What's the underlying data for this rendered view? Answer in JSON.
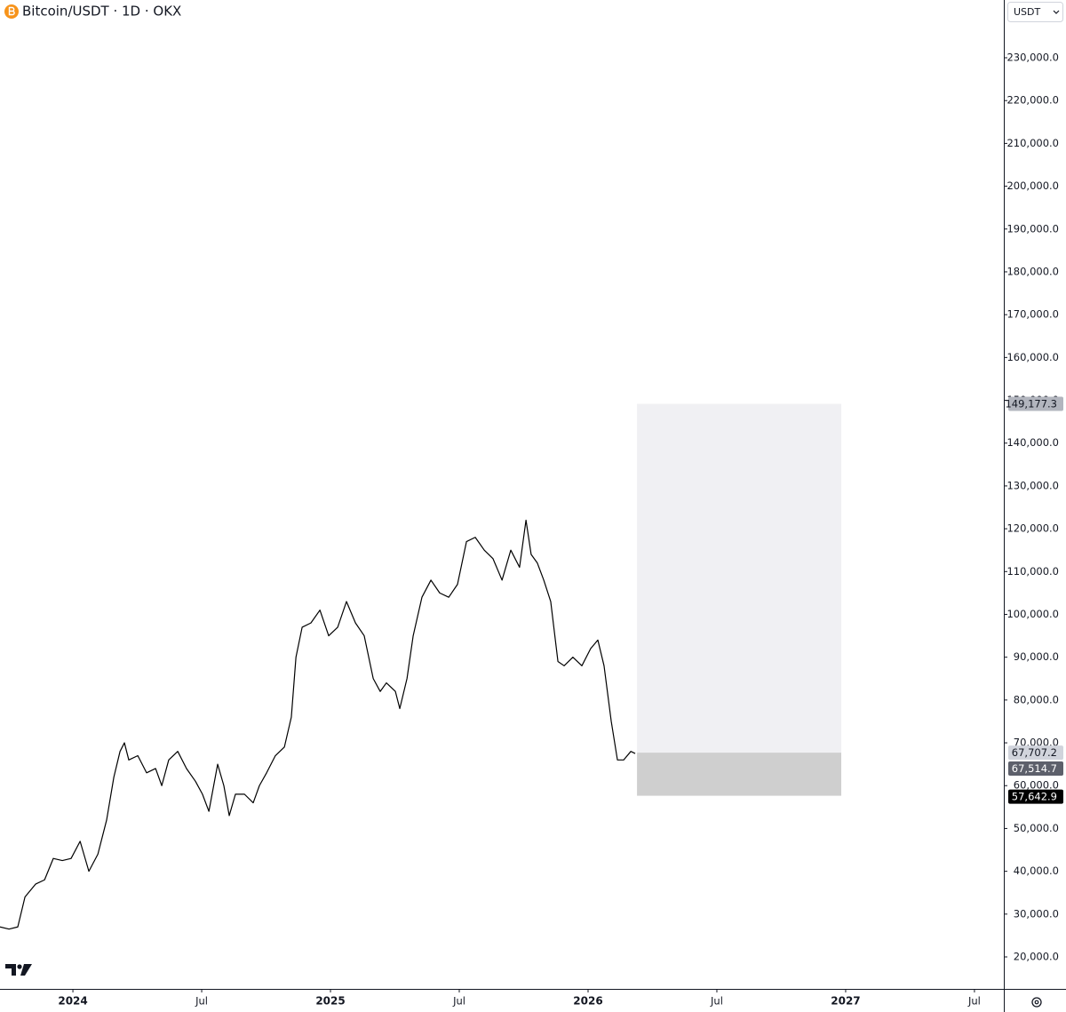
{
  "chart_data": {
    "type": "line",
    "title": "Bitcoin/USDT · 1D · OKX",
    "currency": "USDT",
    "color": "#000000",
    "x": [
      2023.717,
      2023.752,
      2023.786,
      2023.814,
      2023.855,
      2023.89,
      2023.924,
      2023.959,
      2023.993,
      2024.028,
      2024.062,
      2024.097,
      2024.131,
      2024.159,
      2024.183,
      2024.2,
      2024.217,
      2024.252,
      2024.286,
      2024.321,
      2024.345,
      2024.372,
      2024.407,
      2024.441,
      2024.476,
      2024.503,
      2024.528,
      2024.562,
      2024.586,
      2024.607,
      2024.631,
      2024.666,
      2024.7,
      2024.724,
      2024.752,
      2024.786,
      2024.821,
      2024.848,
      2024.866,
      2024.89,
      2024.924,
      2024.959,
      2024.993,
      2025.028,
      2025.062,
      2025.097,
      2025.131,
      2025.166,
      2025.193,
      2025.217,
      2025.252,
      2025.269,
      2025.297,
      2025.321,
      2025.355,
      2025.39,
      2025.424,
      2025.459,
      2025.493,
      2025.528,
      2025.562,
      2025.597,
      2025.631,
      2025.666,
      2025.7,
      2025.734,
      2025.759,
      2025.779,
      2025.803,
      2025.828,
      2025.855,
      2025.883,
      2025.907,
      2025.941,
      2025.976,
      2026.01,
      2026.038,
      2026.062,
      2026.09,
      2026.114,
      2026.138,
      2026.166,
      2026.183
    ],
    "values": [
      27000,
      26500,
      27000,
      34000,
      37000,
      38000,
      43000,
      42500,
      43000,
      47000,
      40000,
      44000,
      52000,
      62000,
      68000,
      70000,
      66000,
      67000,
      63000,
      64000,
      60000,
      66000,
      68000,
      64000,
      61000,
      58000,
      54000,
      65000,
      60000,
      53000,
      58000,
      58000,
      56000,
      60000,
      63000,
      67000,
      69000,
      76000,
      90000,
      97000,
      98000,
      101000,
      95000,
      97000,
      103000,
      98000,
      95000,
      85000,
      82000,
      84000,
      82000,
      78000,
      85000,
      95000,
      104000,
      108000,
      105000,
      104000,
      107000,
      117000,
      118000,
      115000,
      113000,
      108000,
      115000,
      111000,
      122000,
      114000,
      112000,
      108000,
      103000,
      89000,
      88000,
      90000,
      88000,
      92000,
      94000,
      88000,
      75000,
      66000,
      66000,
      68000,
      67514.7
    ],
    "xlim": [
      2023.717,
      2027.614
    ],
    "ylim": [
      12530,
      243490
    ],
    "xticks": [
      2024,
      {
        "value": 2024.5,
        "label": "Jul"
      },
      2025,
      {
        "value": 2025.5,
        "label": "Jul"
      },
      2026,
      {
        "value": 2026.5,
        "label": "Jul"
      },
      2027,
      {
        "value": 2027.5,
        "label": "Jul"
      }
    ],
    "yticks": [
      {
        "value": 20000,
        "label": "20,000.0"
      },
      {
        "value": 30000,
        "label": "30,000.0"
      },
      {
        "value": 40000,
        "label": "40,000.0"
      },
      {
        "value": 50000,
        "label": "50,000.0"
      },
      {
        "value": 60000,
        "label": "60,000.0"
      },
      {
        "value": 70000,
        "label": "70,000.0"
      },
      {
        "value": 80000,
        "label": "80,000.0"
      },
      {
        "value": 90000,
        "label": "90,000.0"
      },
      {
        "value": 100000,
        "label": "100,000.0"
      },
      {
        "value": 110000,
        "label": "110,000.0"
      },
      {
        "value": 120000,
        "label": "120,000.0"
      },
      {
        "value": 130000,
        "label": "130,000.0"
      },
      {
        "value": 140000,
        "label": "140,000.0"
      },
      {
        "value": 150000,
        "label": "150,000.0"
      },
      {
        "value": 160000,
        "label": "160,000.0"
      },
      {
        "value": 170000,
        "label": "170,000.0"
      },
      {
        "value": 180000,
        "label": "180,000.0"
      },
      {
        "value": 190000,
        "label": "190,000.0"
      },
      {
        "value": 200000,
        "label": "200,000.0"
      },
      {
        "value": 210000,
        "label": "210,000.0"
      },
      {
        "value": 220000,
        "label": "220,000.0"
      },
      {
        "value": 230000,
        "label": "230,000.0"
      }
    ],
    "current_price": {
      "value": 67514.7,
      "label": "67,514.7"
    },
    "position": {
      "x_start": 2026.19,
      "x_end": 2026.983,
      "target": {
        "value": 149177.3,
        "label": "149,177.3"
      },
      "entry": {
        "value": 67707.2,
        "label": "67,707.2"
      },
      "stop": {
        "value": 57642.9,
        "label": "57,642.9"
      },
      "profit_color": "#f0f0f3",
      "loss_color": "#cfcfcf"
    }
  }
}
